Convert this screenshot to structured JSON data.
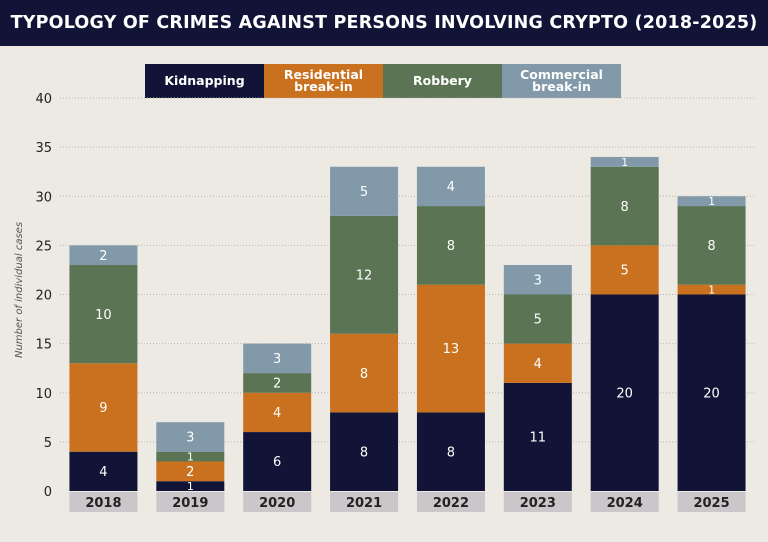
{
  "colors": {
    "header_bg": "#111436",
    "page_bg": "#ede9e3",
    "kidnapping": "#111436",
    "residential": "#c9711f",
    "robbery": "#5b7453",
    "commercial": "#8199a8",
    "xlabel_bg": "#cbc6ca",
    "grid": "#b9b4ad"
  },
  "chart_data": {
    "type": "bar",
    "stacked": true,
    "title": "TYPOLOGY OF CRIMES AGAINST PERSONS INVOLVING CRYPTO (2018-2025)",
    "ylabel": "Number of individual cases",
    "xlabel": "",
    "ylim": [
      0,
      40
    ],
    "yticks": [
      0,
      5,
      10,
      15,
      20,
      25,
      30,
      35,
      40
    ],
    "grid": true,
    "legend_position": "top",
    "categories": [
      "2018",
      "2019",
      "2020",
      "2021",
      "2022",
      "2023",
      "2024",
      "2025"
    ],
    "series": [
      {
        "name": "Kidnapping",
        "color": "#111436",
        "values": [
          4,
          1,
          6,
          8,
          8,
          11,
          20,
          20
        ]
      },
      {
        "name": "Residential\nbreak-in",
        "color": "#c9711f",
        "values": [
          9,
          2,
          4,
          8,
          13,
          4,
          5,
          1
        ]
      },
      {
        "name": "Robbery",
        "color": "#5b7453",
        "values": [
          10,
          1,
          2,
          12,
          8,
          5,
          8,
          8
        ]
      },
      {
        "name": "Commercial\nbreak-in",
        "color": "#8199a8",
        "values": [
          2,
          3,
          3,
          5,
          4,
          3,
          1,
          1
        ]
      }
    ]
  }
}
